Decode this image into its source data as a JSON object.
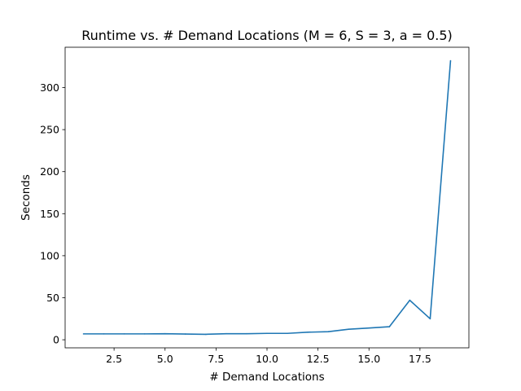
{
  "chart_data": {
    "type": "line",
    "title": "Runtime vs. # Demand Locations (M = 6, S = 3, a = 0.5)",
    "xlabel": "# Demand Locations",
    "ylabel": "Seconds",
    "xlim": [
      0.1,
      19.9
    ],
    "ylim": [
      -9.6,
      348
    ],
    "xticks": [
      2.5,
      5.0,
      7.5,
      10.0,
      12.5,
      15.0,
      17.5
    ],
    "xtick_labels": [
      "2.5",
      "5.0",
      "7.5",
      "10.0",
      "12.5",
      "15.0",
      "17.5"
    ],
    "yticks": [
      0,
      50,
      100,
      150,
      200,
      250,
      300
    ],
    "ytick_labels": [
      "0",
      "50",
      "100",
      "150",
      "200",
      "250",
      "300"
    ],
    "grid": false,
    "series": [
      {
        "color": "#1f77b4",
        "x": [
          1,
          2,
          3,
          4,
          5,
          6,
          7,
          8,
          9,
          10,
          11,
          12,
          13,
          14,
          15,
          16,
          17,
          18,
          19
        ],
        "values": [
          7,
          7,
          7,
          7,
          7.2,
          6.8,
          6.5,
          7.2,
          7.2,
          7.6,
          7.6,
          9,
          9.6,
          12.5,
          14,
          15.5,
          47,
          25,
          332
        ]
      }
    ]
  }
}
